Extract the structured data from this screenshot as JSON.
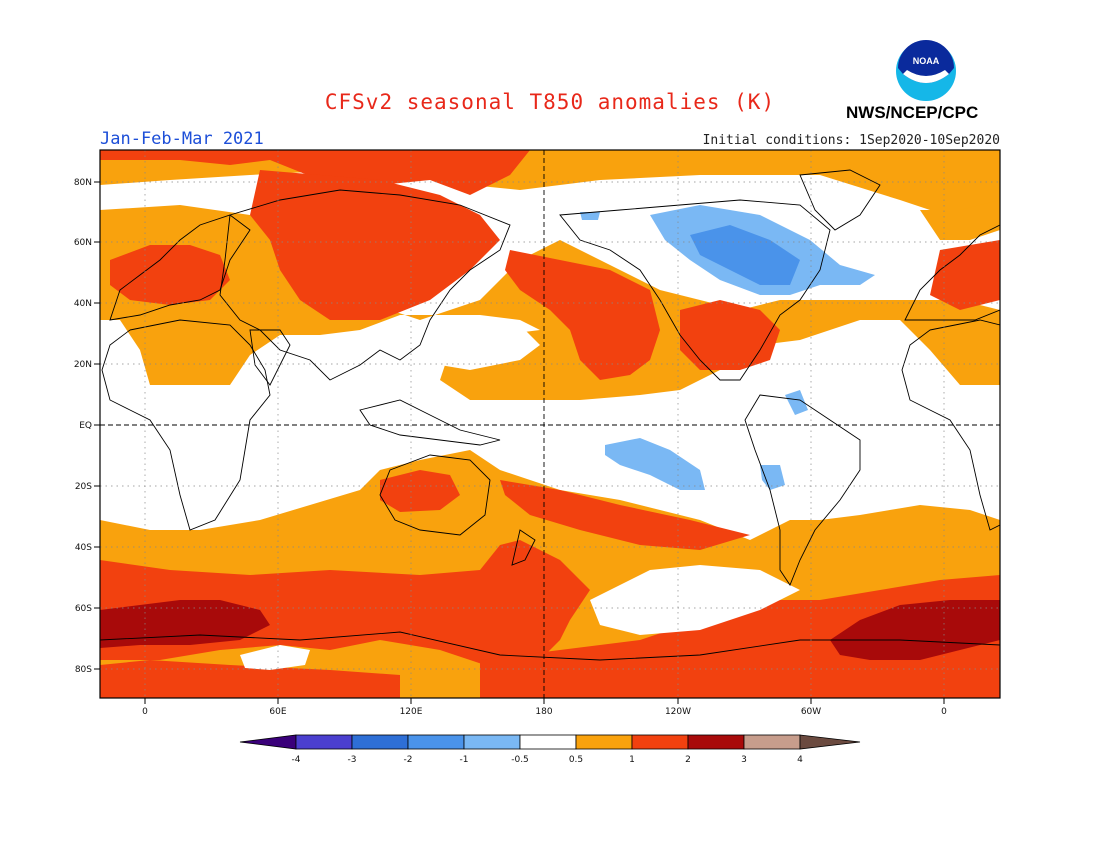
{
  "header": {
    "title": "CFSv2 seasonal T850 anomalies (K)",
    "season": "Jan-Feb-Mar 2021",
    "initial_conditions": "Initial conditions: 1Sep2020-10Sep2020",
    "agency": "NWS/NCEP/CPC",
    "logo_text": "NOAA"
  },
  "map": {
    "lat_labels": [
      "80N",
      "60N",
      "40N",
      "20N",
      "EQ",
      "20S",
      "40S",
      "60S",
      "80S"
    ],
    "lon_labels": [
      "0",
      "60E",
      "120E",
      "180",
      "120W",
      "60W",
      "0"
    ]
  },
  "colorbar": {
    "labels": [
      "-4",
      "-3",
      "-2",
      "-1",
      "-0.5",
      "0.5",
      "1",
      "2",
      "3",
      "4"
    ],
    "colors": {
      "below_-4": "#3a007a",
      "-4_-3": "#4b3fcf",
      "-3_-2": "#2e6fd6",
      "-2_-1": "#4a93ea",
      "-1_-0.5": "#7ab8f4",
      "-0.5_0.5": "#ffffff",
      "0.5_1": "#f9a20d",
      "1_2": "#f2410f",
      "2_3": "#a80a0a",
      "3_4": "#c79d8c",
      "above_4": "#6b4a3f"
    }
  }
}
